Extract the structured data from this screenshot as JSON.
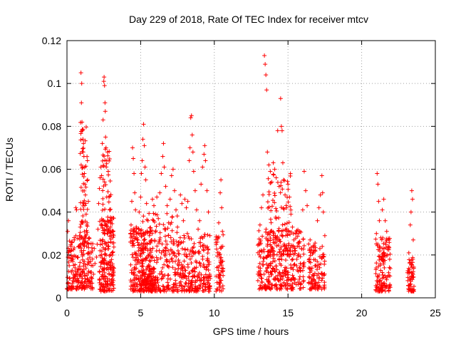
{
  "chart_data": {
    "type": "scatter",
    "title": "Day 229 of 2018, Rate Of TEC Index for receiver mtcv",
    "xlabel": "GPS time / hours",
    "ylabel": "ROTI / TECUs",
    "xlim": [
      0,
      25
    ],
    "ylim": [
      0,
      0.12
    ],
    "xticks": [
      0,
      5,
      10,
      15,
      20,
      25
    ],
    "xtick_labels": [
      "0",
      "5",
      "10",
      "15",
      "20",
      "25"
    ],
    "yticks": [
      0,
      0.02,
      0.04,
      0.06,
      0.08,
      0.1,
      0.12
    ],
    "ytick_labels": [
      "0",
      "0.02",
      "0.04",
      "0.06",
      "0.08",
      "0.1",
      "0.12"
    ],
    "grid": true,
    "marker": "+",
    "color": "#ff0000",
    "series": [
      {
        "name": "ROTI",
        "points": [
          [
            0.05,
            0.031
          ],
          [
            0.1,
            0.036
          ],
          [
            0.15,
            0.015
          ],
          [
            0.2,
            0.009
          ],
          [
            0.25,
            0.022
          ],
          [
            0.3,
            0.012
          ],
          [
            0.35,
            0.018
          ],
          [
            0.4,
            0.008
          ],
          [
            0.45,
            0.011
          ],
          [
            0.5,
            0.027
          ],
          [
            0.55,
            0.014
          ],
          [
            0.6,
            0.042
          ],
          [
            0.65,
            0.041
          ],
          [
            0.7,
            0.019
          ],
          [
            0.75,
            0.013
          ],
          [
            0.8,
            0.024
          ],
          [
            0.85,
            0.029
          ],
          [
            0.9,
            0.033
          ],
          [
            0.95,
            0.105
          ],
          [
            0.98,
            0.091
          ],
          [
            1.0,
            0.1
          ],
          [
            1.02,
            0.082
          ],
          [
            1.05,
            0.078
          ],
          [
            1.08,
            0.074
          ],
          [
            1.1,
            0.068
          ],
          [
            1.12,
            0.072
          ],
          [
            1.15,
            0.066
          ],
          [
            1.18,
            0.058
          ],
          [
            1.2,
            0.061
          ],
          [
            1.22,
            0.053
          ],
          [
            1.25,
            0.048
          ],
          [
            1.28,
            0.044
          ],
          [
            1.3,
            0.039
          ],
          [
            1.35,
            0.034
          ],
          [
            1.4,
            0.055
          ],
          [
            1.45,
            0.045
          ],
          [
            1.5,
            0.028
          ],
          [
            1.55,
            0.021
          ],
          [
            1.6,
            0.017
          ],
          [
            1.65,
            0.012
          ],
          [
            1.7,
            0.009
          ],
          [
            1.75,
            0.015
          ],
          [
            1.8,
            0.011
          ],
          [
            1.85,
            0.023
          ],
          [
            1.9,
            0.016
          ],
          [
            2.0,
            0.019
          ],
          [
            2.05,
            0.025
          ],
          [
            2.1,
            0.032
          ],
          [
            2.15,
            0.044
          ],
          [
            2.2,
            0.051
          ],
          [
            2.25,
            0.056
          ],
          [
            2.3,
            0.061
          ],
          [
            2.35,
            0.057
          ],
          [
            2.4,
            0.072
          ],
          [
            2.45,
            0.083
          ],
          [
            2.5,
            0.101
          ],
          [
            2.52,
            0.103
          ],
          [
            2.55,
            0.099
          ],
          [
            2.58,
            0.091
          ],
          [
            2.6,
            0.087
          ],
          [
            2.62,
            0.075
          ],
          [
            2.65,
            0.07
          ],
          [
            2.7,
            0.064
          ],
          [
            2.75,
            0.068
          ],
          [
            2.8,
            0.059
          ],
          [
            2.85,
            0.047
          ],
          [
            2.9,
            0.041
          ],
          [
            2.95,
            0.036
          ],
          [
            3.0,
            0.029
          ],
          [
            3.05,
            0.021
          ],
          [
            3.1,
            0.013
          ],
          [
            3.15,
            0.008
          ],
          [
            4.3,
            0.026
          ],
          [
            4.35,
            0.034
          ],
          [
            4.4,
            0.045
          ],
          [
            4.45,
            0.07
          ],
          [
            4.5,
            0.065
          ],
          [
            4.55,
            0.058
          ],
          [
            4.6,
            0.049
          ],
          [
            4.65,
            0.041
          ],
          [
            4.7,
            0.033
          ],
          [
            4.75,
            0.028
          ],
          [
            4.8,
            0.017
          ],
          [
            4.9,
            0.04
          ],
          [
            5.0,
            0.047
          ],
          [
            5.05,
            0.058
          ],
          [
            5.1,
            0.064
          ],
          [
            5.15,
            0.074
          ],
          [
            5.2,
            0.081
          ],
          [
            5.25,
            0.071
          ],
          [
            5.3,
            0.061
          ],
          [
            5.35,
            0.055
          ],
          [
            5.4,
            0.044
          ],
          [
            5.5,
            0.036
          ],
          [
            5.6,
            0.029
          ],
          [
            5.7,
            0.022
          ],
          [
            5.8,
            0.046
          ],
          [
            5.9,
            0.043
          ],
          [
            6.0,
            0.039
          ],
          [
            6.1,
            0.047
          ],
          [
            6.2,
            0.037
          ],
          [
            6.3,
            0.049
          ],
          [
            6.4,
            0.058
          ],
          [
            6.5,
            0.066
          ],
          [
            6.55,
            0.072
          ],
          [
            6.6,
            0.061
          ],
          [
            6.7,
            0.052
          ],
          [
            6.8,
            0.043
          ],
          [
            6.9,
            0.035
          ],
          [
            7.0,
            0.046
          ],
          [
            7.1,
            0.057
          ],
          [
            7.2,
            0.06
          ],
          [
            7.3,
            0.05
          ],
          [
            7.4,
            0.041
          ],
          [
            7.5,
            0.033
          ],
          [
            7.6,
            0.026
          ],
          [
            7.7,
            0.048
          ],
          [
            7.8,
            0.044
          ],
          [
            7.9,
            0.036
          ],
          [
            8.0,
            0.046
          ],
          [
            8.1,
            0.042
          ],
          [
            8.2,
            0.045
          ],
          [
            8.3,
            0.064
          ],
          [
            8.35,
            0.07
          ],
          [
            8.4,
            0.084
          ],
          [
            8.45,
            0.085
          ],
          [
            8.5,
            0.076
          ],
          [
            8.55,
            0.068
          ],
          [
            8.6,
            0.059
          ],
          [
            8.7,
            0.05
          ],
          [
            8.8,
            0.041
          ],
          [
            8.9,
            0.032
          ],
          [
            9.0,
            0.036
          ],
          [
            9.1,
            0.053
          ],
          [
            9.2,
            0.061
          ],
          [
            9.3,
            0.067
          ],
          [
            9.35,
            0.071
          ],
          [
            9.4,
            0.064
          ],
          [
            9.5,
            0.05
          ],
          [
            9.6,
            0.04
          ],
          [
            9.7,
            0.029
          ],
          [
            10.2,
            0.026
          ],
          [
            10.3,
            0.035
          ],
          [
            10.4,
            0.049
          ],
          [
            10.45,
            0.055
          ],
          [
            10.5,
            0.042
          ],
          [
            10.55,
            0.031
          ],
          [
            13.0,
            0.025
          ],
          [
            13.1,
            0.034
          ],
          [
            13.2,
            0.042
          ],
          [
            13.3,
            0.048
          ],
          [
            13.4,
            0.113
          ],
          [
            13.45,
            0.109
          ],
          [
            13.5,
            0.104
          ],
          [
            13.55,
            0.097
          ],
          [
            13.6,
            0.068
          ],
          [
            13.7,
            0.062
          ],
          [
            13.8,
            0.059
          ],
          [
            13.9,
            0.054
          ],
          [
            14.0,
            0.063
          ],
          [
            14.1,
            0.06
          ],
          [
            14.2,
            0.056
          ],
          [
            14.3,
            0.078
          ],
          [
            14.4,
            0.052
          ],
          [
            14.5,
            0.093
          ],
          [
            14.55,
            0.08
          ],
          [
            14.6,
            0.078
          ],
          [
            14.65,
            0.063
          ],
          [
            14.7,
            0.055
          ],
          [
            14.8,
            0.048
          ],
          [
            14.9,
            0.042
          ],
          [
            15.0,
            0.053
          ],
          [
            15.1,
            0.047
          ],
          [
            15.2,
            0.039
          ],
          [
            15.3,
            0.033
          ],
          [
            15.4,
            0.027
          ],
          [
            15.5,
            0.022
          ],
          [
            15.6,
            0.018
          ],
          [
            15.8,
            0.031
          ],
          [
            16.0,
            0.041
          ],
          [
            16.1,
            0.059
          ],
          [
            16.2,
            0.05
          ],
          [
            16.3,
            0.043
          ],
          [
            16.5,
            0.027
          ],
          [
            16.7,
            0.024
          ],
          [
            17.0,
            0.036
          ],
          [
            17.1,
            0.042
          ],
          [
            17.2,
            0.048
          ],
          [
            17.3,
            0.057
          ],
          [
            17.35,
            0.049
          ],
          [
            17.4,
            0.04
          ],
          [
            17.5,
            0.029
          ],
          [
            21.0,
            0.03
          ],
          [
            21.05,
            0.058
          ],
          [
            21.1,
            0.053
          ],
          [
            21.15,
            0.045
          ],
          [
            21.2,
            0.036
          ],
          [
            21.3,
            0.028
          ],
          [
            21.4,
            0.041
          ],
          [
            21.5,
            0.046
          ],
          [
            21.6,
            0.036
          ],
          [
            21.7,
            0.031
          ],
          [
            21.8,
            0.024
          ],
          [
            21.9,
            0.018
          ],
          [
            23.2,
            0.021
          ],
          [
            23.3,
            0.034
          ],
          [
            23.35,
            0.04
          ],
          [
            23.4,
            0.05
          ],
          [
            23.45,
            0.046
          ],
          [
            23.5,
            0.027
          ]
        ]
      }
    ],
    "dense_clusters": [
      {
        "x_range": [
          0.0,
          1.75
        ],
        "y_min": 0.004,
        "y_max": 0.029,
        "count": 190
      },
      {
        "x_range": [
          0.9,
          1.4
        ],
        "y_min": 0.025,
        "y_max": 0.082,
        "count": 60
      },
      {
        "x_range": [
          2.2,
          3.2
        ],
        "y_min": 0.003,
        "y_max": 0.038,
        "count": 180
      },
      {
        "x_range": [
          2.4,
          3.0
        ],
        "y_min": 0.03,
        "y_max": 0.07,
        "count": 55
      },
      {
        "x_range": [
          4.3,
          5.9
        ],
        "y_min": 0.003,
        "y_max": 0.033,
        "count": 220
      },
      {
        "x_range": [
          5.0,
          7.6
        ],
        "y_min": 0.003,
        "y_max": 0.04,
        "count": 260
      },
      {
        "x_range": [
          7.5,
          9.75
        ],
        "y_min": 0.003,
        "y_max": 0.03,
        "count": 230
      },
      {
        "x_range": [
          10.1,
          10.6
        ],
        "y_min": 0.003,
        "y_max": 0.03,
        "count": 60
      },
      {
        "x_range": [
          12.95,
          16.1
        ],
        "y_min": 0.004,
        "y_max": 0.032,
        "count": 330
      },
      {
        "x_range": [
          13.6,
          15.2
        ],
        "y_min": 0.02,
        "y_max": 0.058,
        "count": 90
      },
      {
        "x_range": [
          16.4,
          17.5
        ],
        "y_min": 0.004,
        "y_max": 0.026,
        "count": 110
      },
      {
        "x_range": [
          20.95,
          21.95
        ],
        "y_min": 0.003,
        "y_max": 0.028,
        "count": 130
      },
      {
        "x_range": [
          23.1,
          23.55
        ],
        "y_min": 0.003,
        "y_max": 0.019,
        "count": 60
      }
    ]
  }
}
